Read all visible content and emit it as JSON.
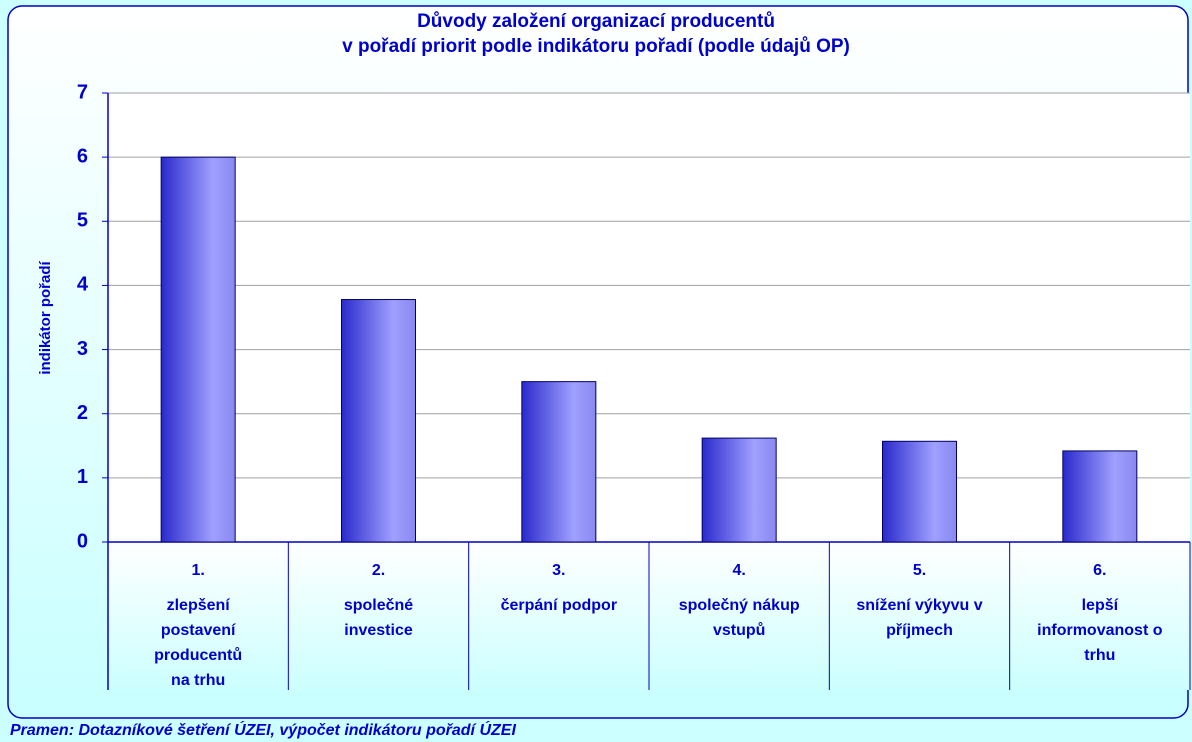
{
  "chart_data": {
    "type": "bar",
    "title_lines": [
      "Důvody založení organizací producentů",
      "v pořadí priorit podle  indikátoru pořadí (podle údajů OP)"
    ],
    "y_label": "indikátor pořadí",
    "categories": [
      "1.",
      "2.",
      "3.",
      "4.",
      "5.",
      "6."
    ],
    "category_lines": [
      [
        "zlepšení",
        "postavení",
        "producentů",
        "na trhu"
      ],
      [
        "společné",
        "investice"
      ],
      [
        "čerpání podpor"
      ],
      [
        "společný nákup",
        "vstupů"
      ],
      [
        "snížení výkyvu v",
        "příjmech"
      ],
      [
        "lepší",
        "informovanost o",
        "trhu"
      ]
    ],
    "values": [
      6,
      3.78,
      2.5,
      1.62,
      1.57,
      1.42
    ],
    "color": "#5555ee",
    "ylim": [
      0,
      7
    ],
    "yticks": [
      0,
      1,
      2,
      3,
      4,
      5,
      6,
      7
    ],
    "grid": true,
    "source": "Pramen: Dotazníkové šetření ÚZEI, výpočet indikátoru pořadí ÚZEI"
  }
}
